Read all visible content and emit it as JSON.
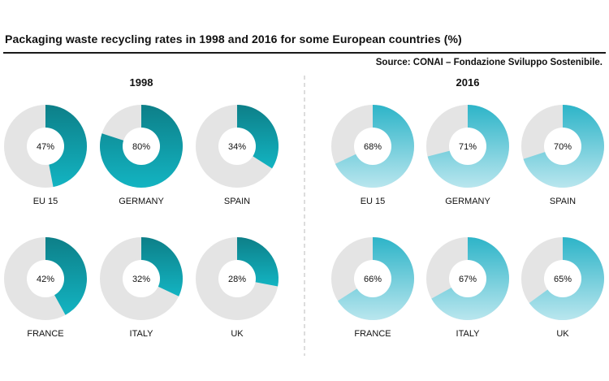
{
  "header": {
    "title": "Packaging waste recycling rates in 1998 and 2016 for some European countries (%)",
    "source": "Source: CONAI – Fondazione Sviluppo Sostenibile."
  },
  "colors": {
    "track": "#e4e4e4",
    "panel_1998_start": "#0d7f88",
    "panel_1998_end": "#13b4c2",
    "panel_2016_start": "#2db4c8",
    "panel_2016_end": "#b9e6ee",
    "divider": "#bbbbbb"
  },
  "chart_data": {
    "type": "pie",
    "variant": "donut",
    "panels": [
      {
        "year": "1998",
        "items": [
          {
            "country": "EU 15",
            "value": 47,
            "label": "47%"
          },
          {
            "country": "GERMANY",
            "value": 80,
            "label": "80%"
          },
          {
            "country": "SPAIN",
            "value": 34,
            "label": "34%"
          },
          {
            "country": "FRANCE",
            "value": 42,
            "label": "42%"
          },
          {
            "country": "ITALY",
            "value": 32,
            "label": "32%"
          },
          {
            "country": "UK",
            "value": 28,
            "label": "28%"
          }
        ]
      },
      {
        "year": "2016",
        "items": [
          {
            "country": "EU 15",
            "value": 68,
            "label": "68%"
          },
          {
            "country": "GERMANY",
            "value": 71,
            "label": "71%"
          },
          {
            "country": "SPAIN",
            "value": 70,
            "label": "70%"
          },
          {
            "country": "FRANCE",
            "value": 66,
            "label": "66%"
          },
          {
            "country": "ITALY",
            "value": 67,
            "label": "67%"
          },
          {
            "country": "UK",
            "value": 65,
            "label": "65%"
          }
        ]
      }
    ]
  }
}
